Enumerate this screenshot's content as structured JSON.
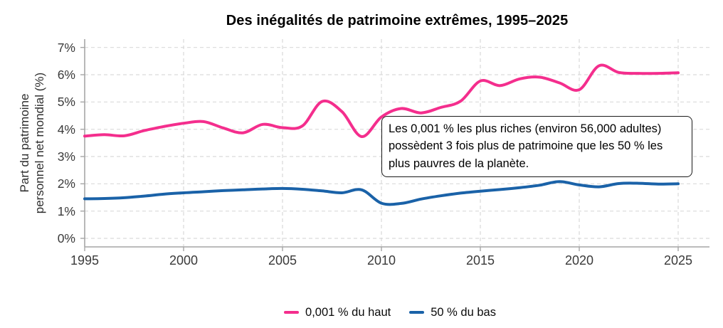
{
  "title": "Des inégalités de patrimoine extrêmes, 1995–2025",
  "y_axis": {
    "label_lines": [
      "Part du patrimoine",
      "personnel net mondial (%)"
    ],
    "tick_labels": [
      "0%",
      "1%",
      "2%",
      "3%",
      "4%",
      "5%",
      "6%",
      "7%"
    ]
  },
  "x_axis": {
    "tick_labels": [
      "1995",
      "2000",
      "2005",
      "2010",
      "2015",
      "2020",
      "2025"
    ]
  },
  "annotation": {
    "lines": [
      "Les 0,001 % les plus riches (environ 56,000 adultes)",
      "possèdent 3 fois plus de patrimoine que les 50 % les",
      "plus pauvres de la planète."
    ]
  },
  "colors": {
    "top_series": "#F42E8D",
    "bottom_series": "#1A62A8",
    "grid": "#D9D9D9",
    "axis": "#A6A6A6",
    "tick_text": "#3A3A3A"
  },
  "chart_data": {
    "type": "line",
    "title": "Des inégalités de patrimoine extrêmes, 1995–2025",
    "xlabel": "",
    "ylabel": "Part du patrimoine personnel net mondial (%)",
    "xlim": [
      1995,
      2025
    ],
    "ylim": [
      0,
      7
    ],
    "x_ticks": [
      1995,
      2000,
      2005,
      2010,
      2015,
      2020,
      2025
    ],
    "y_ticks": [
      0,
      1,
      2,
      3,
      4,
      5,
      6,
      7
    ],
    "grid": "dashed",
    "legend_position": "bottom",
    "x": [
      1995,
      1996,
      1997,
      1998,
      1999,
      2000,
      2001,
      2002,
      2003,
      2004,
      2005,
      2006,
      2007,
      2008,
      2009,
      2010,
      2011,
      2012,
      2013,
      2014,
      2015,
      2016,
      2017,
      2018,
      2019,
      2020,
      2021,
      2022,
      2023,
      2024,
      2025
    ],
    "series": [
      {
        "name": "0,001 % du haut",
        "color": "#F42E8D",
        "values": [
          3.75,
          3.8,
          3.76,
          3.95,
          4.1,
          4.22,
          4.28,
          4.05,
          3.87,
          4.18,
          4.06,
          4.12,
          5.02,
          4.65,
          3.73,
          4.45,
          4.76,
          4.6,
          4.8,
          5.03,
          5.77,
          5.6,
          5.85,
          5.91,
          5.7,
          5.45,
          6.33,
          6.08,
          6.05,
          6.05,
          6.07
        ]
      },
      {
        "name": "50 % du bas",
        "color": "#1A62A8",
        "values": [
          1.45,
          1.46,
          1.49,
          1.55,
          1.62,
          1.67,
          1.71,
          1.75,
          1.78,
          1.81,
          1.83,
          1.8,
          1.74,
          1.67,
          1.78,
          1.29,
          1.28,
          1.44,
          1.56,
          1.66,
          1.73,
          1.79,
          1.86,
          1.95,
          2.08,
          1.96,
          1.89,
          2.01,
          2.02,
          1.99,
          2.0
        ]
      }
    ]
  }
}
